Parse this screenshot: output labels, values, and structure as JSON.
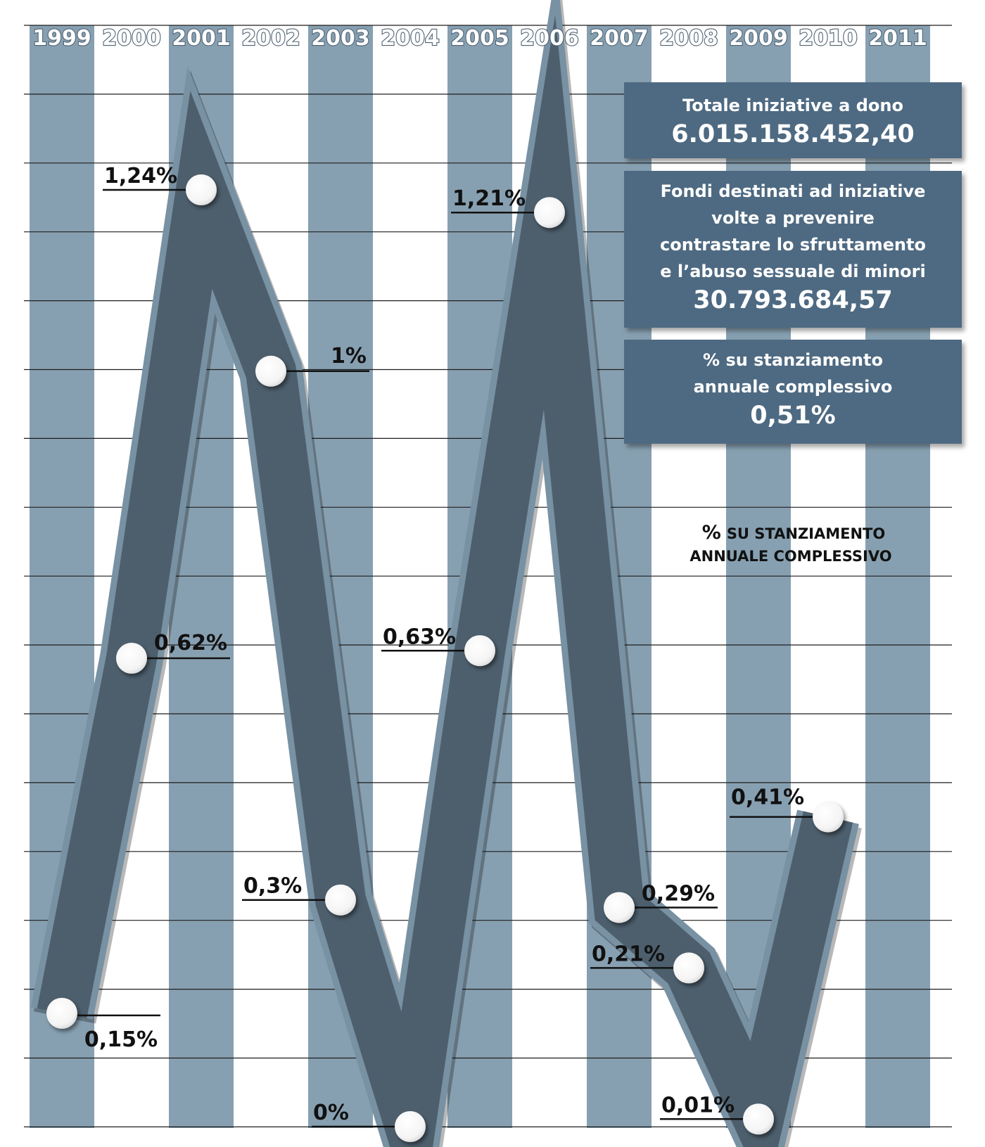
{
  "chart_data": {
    "type": "line",
    "title": "",
    "xlabel": "",
    "ylabel": "",
    "x": [
      "1999",
      "2000",
      "2001",
      "2002",
      "2003",
      "2004",
      "2005",
      "2006",
      "2007",
      "2008",
      "2009",
      "2010",
      "2011"
    ],
    "series": [
      {
        "values": [
          0.15,
          0.62,
          1.24,
          1.0,
          0.3,
          0.0,
          0.63,
          1.21,
          0.29,
          0.21,
          0.01,
          0.41,
          null
        ],
        "labels": [
          "0,15%",
          "0,62%",
          "1,24%",
          "1%",
          "0,3%",
          "0%",
          "0,63%",
          "1,21%",
          "0,29%",
          "0,21%",
          "0,01%",
          "0,41%",
          ""
        ]
      }
    ],
    "ylim": [
      0,
      1.3
    ],
    "grid": true,
    "annotation": {
      "pct": "%",
      "line1": "SU STANZIAMENTO",
      "line2": "ANNUALE COMPLESSIVO"
    }
  },
  "info_boxes": [
    {
      "lines": [
        "Totale iniziative a dono"
      ],
      "value": "6.015.158.452,40"
    },
    {
      "lines": [
        "Fondi destinati ad iniziative",
        "volte a prevenire",
        "contrastare lo sfruttamento",
        "e l’abuso sessuale di minori"
      ],
      "value": "30.793.684,57"
    },
    {
      "lines": [
        "% su stanziamento",
        "annuale complessivo"
      ],
      "value": "0,51%"
    }
  ],
  "colors": {
    "stripe": "#87a0b1",
    "ribbon": "#4d5f6d",
    "ribbon_edge": "#7891a3",
    "box": "#4e6a82",
    "grid": "#1e1e1e",
    "text": "#111111"
  }
}
